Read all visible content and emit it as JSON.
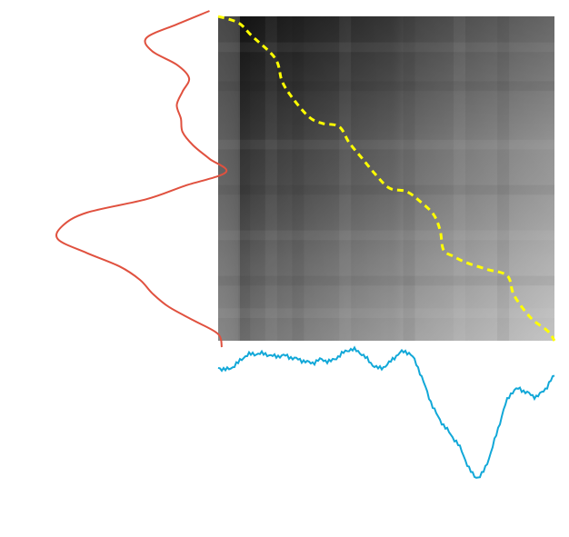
{
  "figure": {
    "type": "dtw-alignment",
    "colors": {
      "vertical_signal": "#e0513f",
      "horizontal_signal": "#12a8d8",
      "warping_path": "#ffff00",
      "cost_dark": "#111111",
      "cost_light": "#bdbdbd"
    },
    "signals": {
      "vertical": {
        "description_points_note": "",
        "values": [
          0.95,
          0.55,
          0.18,
          0.25,
          0.55,
          0.7,
          0.62,
          0.55,
          0.6,
          0.62,
          0.75,
          0.95,
          1.15,
          0.65,
          0.18,
          -0.55,
          -0.85,
          -0.9,
          -0.55,
          -0.15,
          0.1,
          0.25,
          0.45,
          0.75,
          1.05,
          1.1
        ]
      },
      "horizontal": {
        "values": [
          0.78,
          0.76,
          0.83,
          0.93,
          0.95,
          0.95,
          0.92,
          0.93,
          0.9,
          0.87,
          0.84,
          0.88,
          0.86,
          0.93,
          1.0,
          0.98,
          0.88,
          0.78,
          0.81,
          0.92,
          0.98,
          0.88,
          0.6,
          0.3,
          0.1,
          -0.05,
          -0.22,
          -0.48,
          -0.55,
          -0.32,
          0.05,
          0.4,
          0.52,
          0.48,
          0.43,
          0.52,
          0.68
        ]
      }
    },
    "warping_path": [
      [
        0,
        0
      ],
      [
        0.06,
        0.02
      ],
      [
        0.1,
        0.06
      ],
      [
        0.17,
        0.13
      ],
      [
        0.19,
        0.2
      ],
      [
        0.22,
        0.25
      ],
      [
        0.27,
        0.31
      ],
      [
        0.31,
        0.33
      ],
      [
        0.36,
        0.34
      ],
      [
        0.39,
        0.39
      ],
      [
        0.43,
        0.44
      ],
      [
        0.47,
        0.49
      ],
      [
        0.51,
        0.53
      ],
      [
        0.56,
        0.54
      ],
      [
        0.6,
        0.57
      ],
      [
        0.64,
        0.61
      ],
      [
        0.66,
        0.66
      ],
      [
        0.67,
        0.72
      ],
      [
        0.7,
        0.74
      ],
      [
        0.74,
        0.76
      ],
      [
        0.8,
        0.78
      ],
      [
        0.86,
        0.8
      ],
      [
        0.88,
        0.86
      ],
      [
        0.93,
        0.93
      ],
      [
        0.98,
        0.97
      ],
      [
        1,
        1
      ]
    ]
  }
}
